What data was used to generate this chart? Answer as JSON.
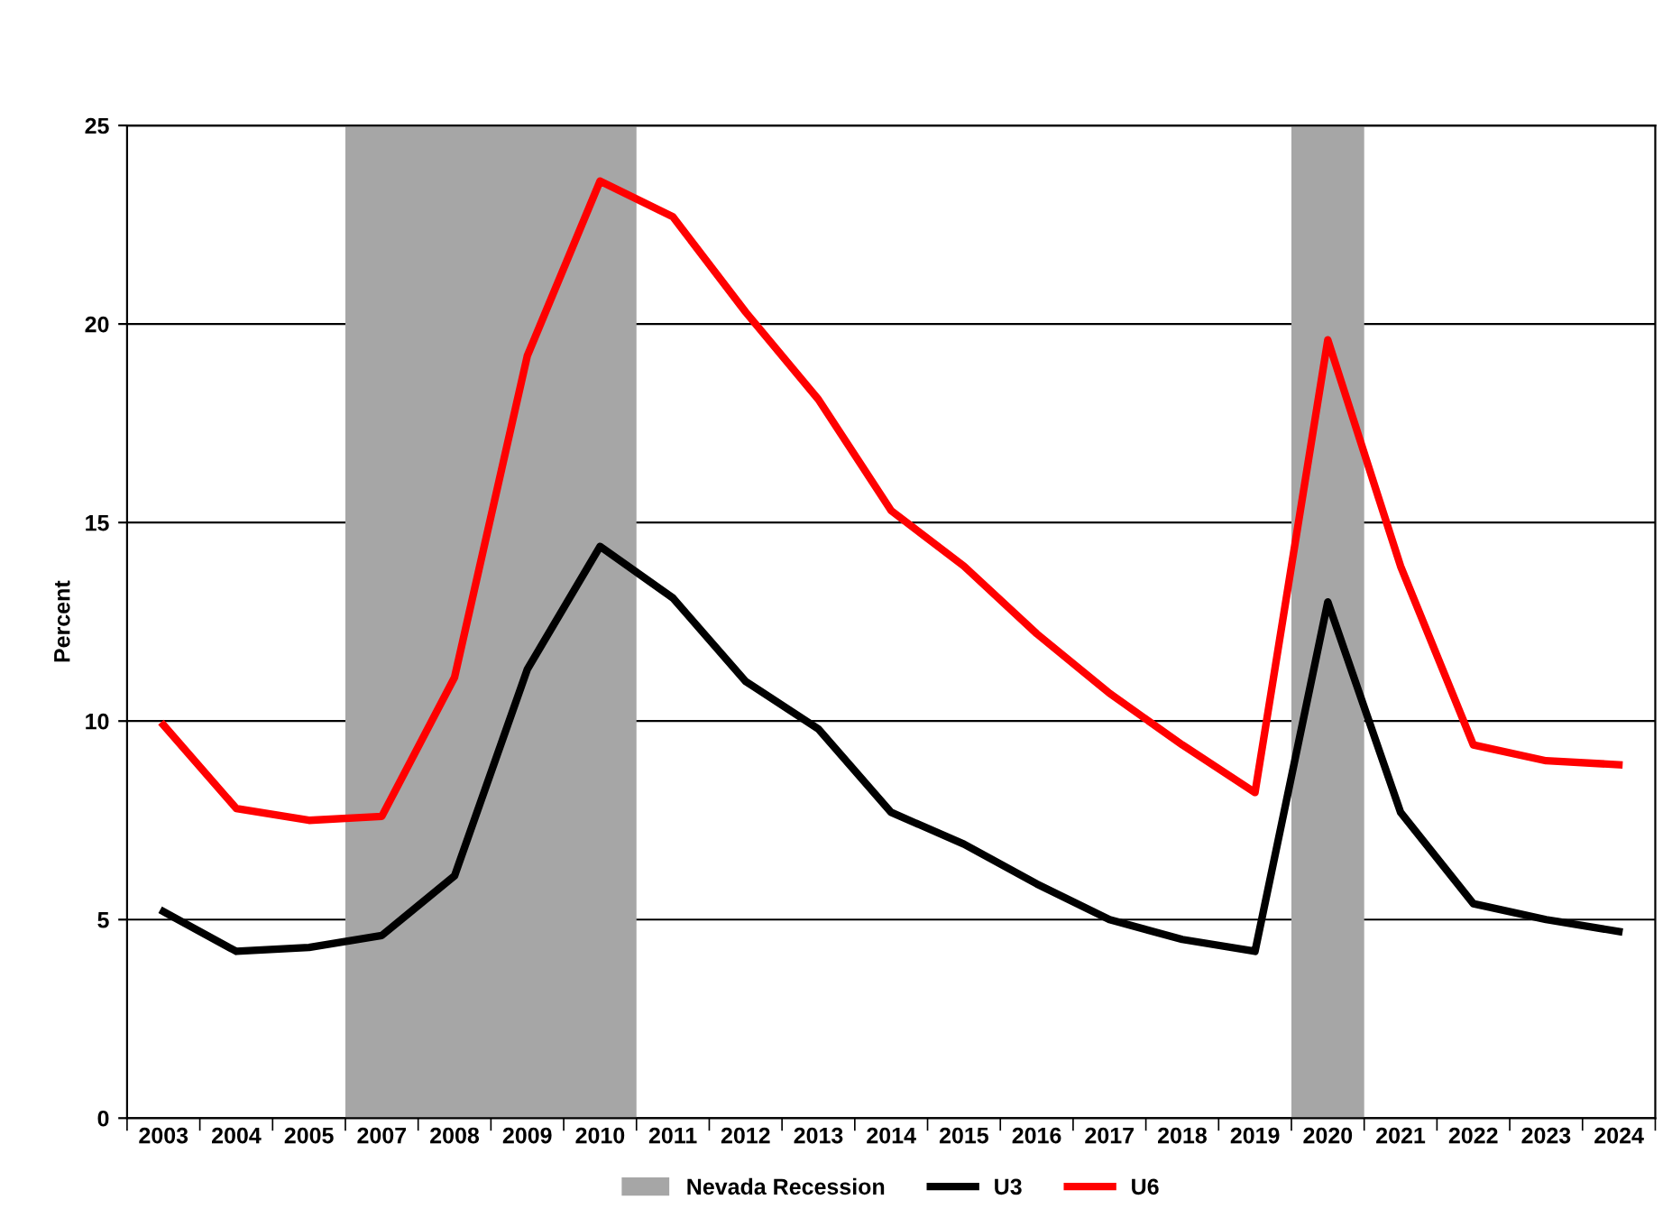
{
  "chart_data": {
    "type": "line",
    "ylabel": "Percent",
    "categories": [
      "2003",
      "2004",
      "2005",
      "2007",
      "2008",
      "2009",
      "2010",
      "2011",
      "2012",
      "2013",
      "2014",
      "2015",
      "2016",
      "2017",
      "2018",
      "2019",
      "2020",
      "2021",
      "2022",
      "2023",
      "2024"
    ],
    "series": [
      {
        "name": "U3",
        "color": "#000000",
        "values": [
          5.2,
          4.2,
          4.3,
          4.6,
          6.1,
          11.3,
          14.4,
          13.1,
          11.0,
          9.8,
          7.7,
          6.9,
          5.9,
          5.0,
          4.5,
          4.2,
          13.0,
          7.7,
          5.4,
          5.0,
          4.7
        ]
      },
      {
        "name": "U6",
        "color": "#ff0000",
        "values": [
          9.9,
          7.8,
          7.5,
          7.6,
          11.1,
          19.2,
          23.6,
          22.7,
          20.3,
          18.1,
          15.3,
          13.9,
          12.2,
          10.7,
          9.4,
          8.2,
          19.6,
          13.9,
          9.4,
          9.0,
          8.9
        ]
      }
    ],
    "bands": [
      {
        "axis": "x",
        "from": "2007",
        "to": "2010",
        "label": "Nevada Recession",
        "color": "#a6a6a6"
      },
      {
        "axis": "x",
        "from": "2020",
        "to": "2020",
        "color": "#a6a6a6"
      }
    ],
    "ylim": [
      0,
      25
    ],
    "yticks": [
      0,
      5,
      10,
      15,
      20,
      25
    ],
    "grid": "y",
    "legend": "bottom",
    "marker": "none",
    "line_style": "solid"
  }
}
